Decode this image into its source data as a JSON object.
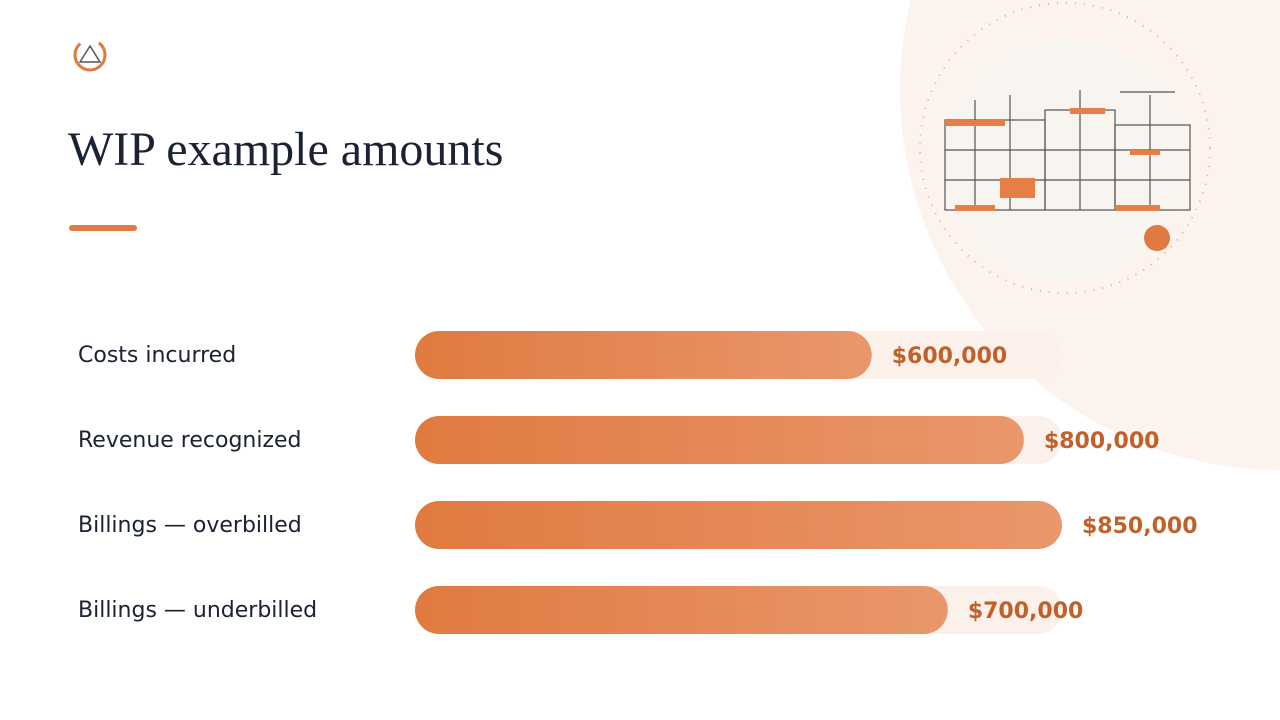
{
  "chart_data": {
    "type": "bar",
    "orientation": "horizontal",
    "title": "WIP example amounts",
    "categories": [
      "Costs incurred",
      "Revenue recognized",
      "Billings — overbilled",
      "Billings — underbilled"
    ],
    "values": [
      600000,
      800000,
      850000,
      700000
    ],
    "value_labels": [
      "$600,000",
      "$800,000",
      "$850,000",
      "$700,000"
    ],
    "color": "#e07a40",
    "xlim": [
      0,
      850000
    ]
  }
}
